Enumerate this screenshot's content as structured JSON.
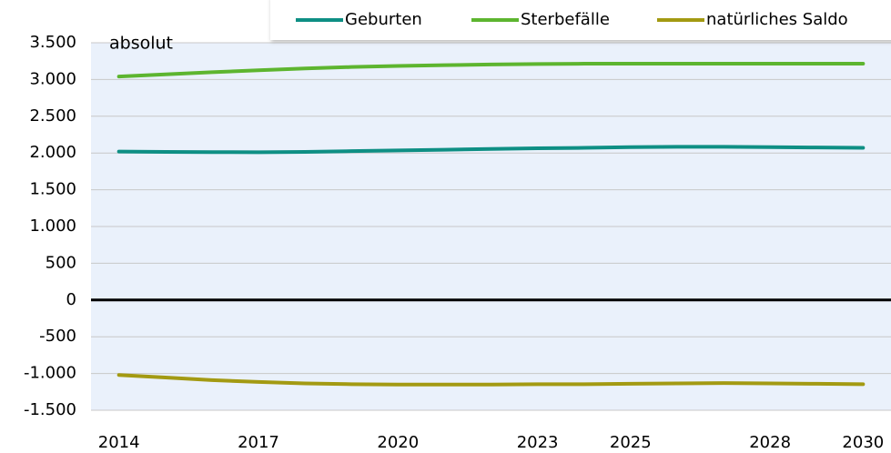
{
  "chart_data": {
    "type": "line",
    "annotation": "absolut",
    "x": [
      2014,
      2015,
      2016,
      2017,
      2018,
      2019,
      2020,
      2021,
      2022,
      2023,
      2024,
      2025,
      2026,
      2027,
      2028,
      2029,
      2030
    ],
    "series": [
      {
        "name": "Geburten",
        "color": "#0e8f84",
        "values": [
          2020,
          2015,
          2012,
          2010,
          2015,
          2025,
          2035,
          2045,
          2055,
          2065,
          2070,
          2080,
          2085,
          2085,
          2080,
          2075,
          2070
        ]
      },
      {
        "name": "Sterbefälle",
        "color": "#5db52f",
        "values": [
          3040,
          3070,
          3100,
          3125,
          3150,
          3170,
          3185,
          3195,
          3205,
          3210,
          3215,
          3215,
          3215,
          3215,
          3215,
          3215,
          3215
        ]
      },
      {
        "name": "natürliches Saldo",
        "color": "#a39a12",
        "values": [
          -1020,
          -1055,
          -1090,
          -1115,
          -1135,
          -1145,
          -1150,
          -1150,
          -1150,
          -1145,
          -1145,
          -1140,
          -1135,
          -1130,
          -1135,
          -1140,
          -1145
        ]
      }
    ],
    "xlim": [
      2013.4,
      2030.6
    ],
    "xticks": [
      2014,
      2017,
      2020,
      2023,
      2025,
      2028,
      2030
    ],
    "ylim": [
      -1500,
      3500
    ],
    "yticks": [
      {
        "value": -1500,
        "label": "-1.500"
      },
      {
        "value": -1000,
        "label": "-1.000"
      },
      -500,
      0,
      500,
      {
        "value": 1000,
        "label": "1.000"
      },
      {
        "value": 1500,
        "label": "1.500"
      },
      {
        "value": 2000,
        "label": "2.000"
      },
      {
        "value": 2500,
        "label": "2.500"
      },
      {
        "value": 3000,
        "label": "3.000"
      },
      {
        "value": 3500,
        "label": "3.500"
      }
    ],
    "grid": true,
    "legend": "top-right"
  }
}
